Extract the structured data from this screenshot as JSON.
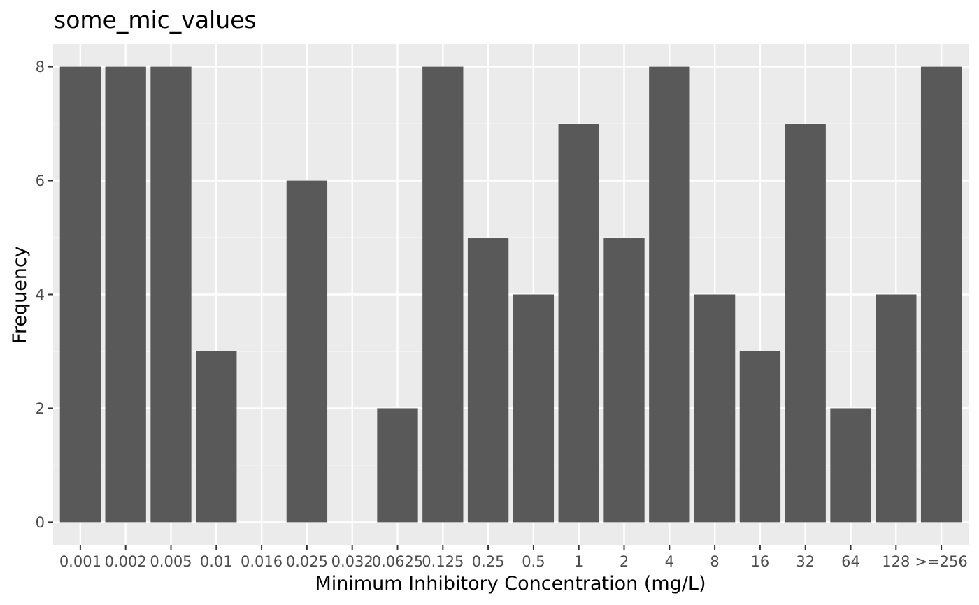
{
  "chart_data": {
    "type": "bar",
    "title": "some_mic_values",
    "xlabel": "Minimum Inhibitory Concentration (mg/L)",
    "ylabel": "Frequency",
    "categories": [
      "0.001",
      "0.002",
      "0.005",
      "0.01",
      "0.016",
      "0.025",
      "0.032",
      "0.0625",
      "0.125",
      "0.25",
      "0.5",
      "1",
      "2",
      "4",
      "8",
      "16",
      "32",
      "64",
      "128",
      ">=256"
    ],
    "values": [
      8,
      8,
      8,
      3,
      0,
      6,
      0,
      2,
      8,
      5,
      4,
      7,
      5,
      8,
      4,
      3,
      7,
      2,
      4,
      8
    ],
    "ylim": [
      -0.4,
      8.4
    ],
    "yticks": [
      0,
      2,
      4,
      6,
      8
    ],
    "grid": true,
    "legend": "none",
    "colors": {
      "bar": "#595959",
      "panel": "#ebebeb",
      "grid_major": "#ffffff",
      "grid_minor": "#f5f5f5",
      "tick": "#333333"
    }
  }
}
